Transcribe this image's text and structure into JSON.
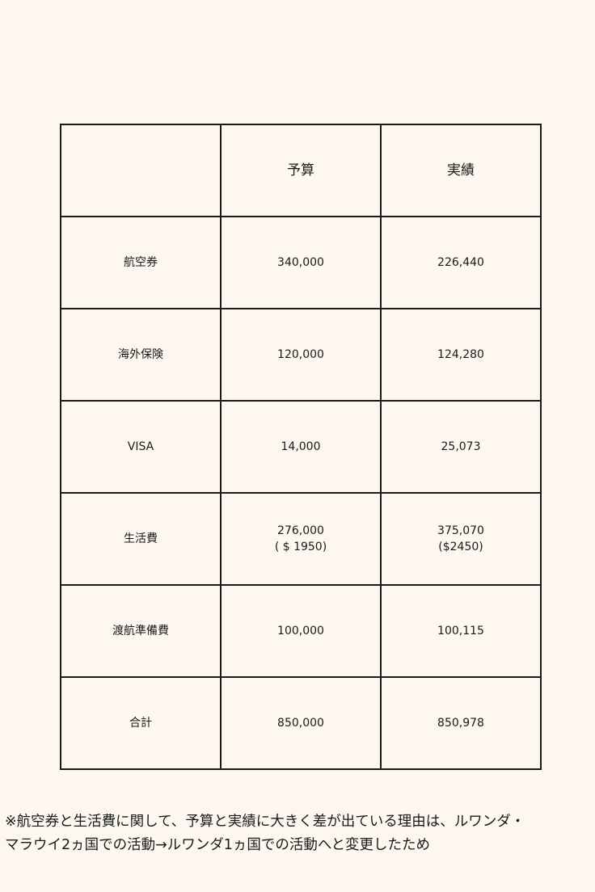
{
  "table": {
    "headers": [
      "",
      "予算",
      "実績"
    ],
    "rows": [
      {
        "item": "航空券",
        "budget": [
          "340,000"
        ],
        "actual": [
          "226,440"
        ]
      },
      {
        "item": "海外保険",
        "budget": [
          "120,000"
        ],
        "actual": [
          "124,280"
        ]
      },
      {
        "item": "VISA",
        "budget": [
          "14,000"
        ],
        "actual": [
          "25,073"
        ]
      },
      {
        "item": "生活費",
        "budget": [
          "276,000",
          "( $ 1950)"
        ],
        "actual": [
          "375,070",
          "($2450)"
        ]
      },
      {
        "item": "渡航準備費",
        "budget": [
          "100,000"
        ],
        "actual": [
          "100,115"
        ]
      },
      {
        "item": "合計",
        "budget": [
          "850,000"
        ],
        "actual": [
          "850,978"
        ]
      }
    ]
  },
  "note": {
    "line1": "※航空券と生活費に関して、予算と実績に大きく差が出ている理由は、ルワンダ・",
    "line2": "マラウイ2ヵ国での活動→ルワンダ1ヵ国での活動へと変更したため"
  }
}
